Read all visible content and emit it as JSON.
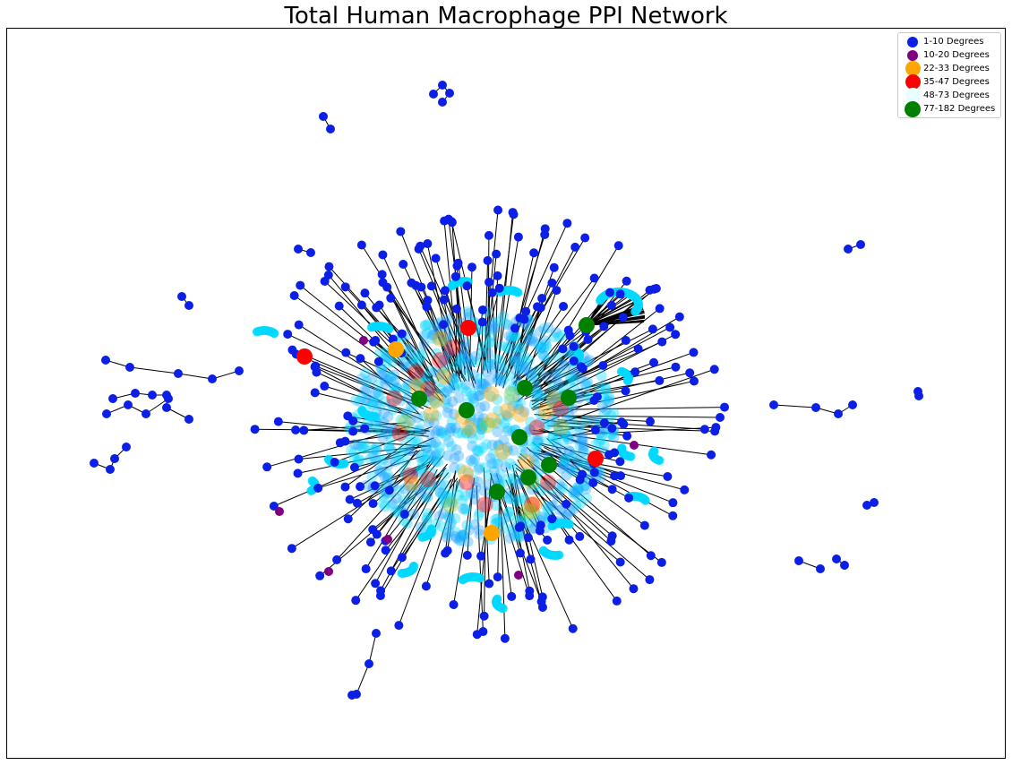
{
  "figure": {
    "title": "Total Human Macrophage PPI Network"
  },
  "legend": {
    "entries": [
      {
        "label": "1-10 Degrees",
        "color": "#0b1fe6"
      },
      {
        "label": "10-20 Degrees",
        "color": "#800080"
      },
      {
        "label": "22-33 Degrees",
        "color": "#ffa500"
      },
      {
        "label": "35-47 Degrees",
        "color": "#ff0000"
      },
      {
        "label": "48-73 Degrees",
        "color": "#00ffff"
      },
      {
        "label": "77-182 Degrees",
        "color": "#008000"
      }
    ]
  },
  "network": {
    "degree_classes": [
      {
        "label": "1-10 Degrees",
        "color": "#0b1fe6"
      },
      {
        "label": "10-20 Degrees",
        "color": "#800080"
      },
      {
        "label": "22-33 Degrees",
        "color": "#ffa500"
      },
      {
        "label": "35-47 Degrees",
        "color": "#ff0000"
      },
      {
        "label": "48-73 Degrees",
        "color": "#00ffff"
      },
      {
        "label": "77-182 Degrees",
        "color": "#008000"
      }
    ],
    "edge_color": "#000000",
    "hub_color": "#008000",
    "dense_core_color": "#1ea0ff"
  }
}
